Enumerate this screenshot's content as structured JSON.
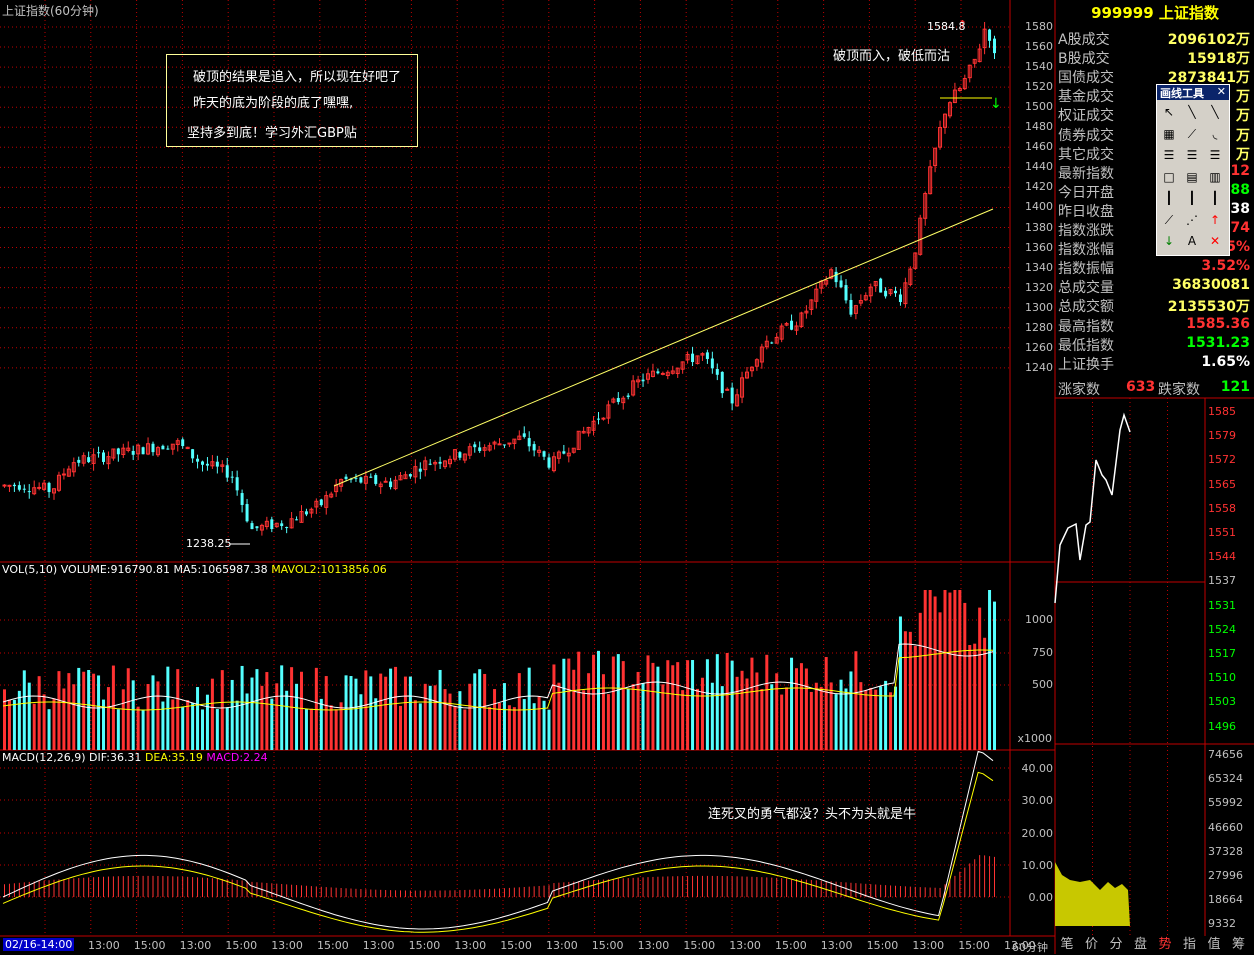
{
  "header": {
    "title": "上证指数(60分钟)"
  },
  "colors": {
    "up": "#ff3232",
    "down": "#54ffff",
    "grid": "#c00000",
    "ma5": "#ffffff",
    "ma10": "#ffff00"
  },
  "price_axis": {
    "ticks": [
      "1580",
      "1560",
      "1540",
      "1520",
      "1500",
      "1480",
      "1460",
      "1440",
      "1420",
      "1400",
      "1380",
      "1360",
      "1340",
      "1320",
      "1300",
      "1280",
      "1260",
      "1240"
    ]
  },
  "volume_axis": {
    "ticks": [
      "1000",
      "750",
      "500"
    ],
    "unit": "x1000"
  },
  "macd_axis": {
    "ticks": [
      "40.00",
      "30.00",
      "20.00",
      "10.00",
      "0.00"
    ]
  },
  "annotations": {
    "high_label": "1584.8",
    "low_label": "1238.25",
    "box_line1": "破顶的结果是追入，所以现在好吧了",
    "box_line2": "昨天的底为阶段的底了嘿嘿,",
    "box_line3": "坚持多到底！学习外汇GBP贴",
    "break_note": "破顶而入，破低而沽",
    "macd_note": "连死叉的勇气都没？头不为头就是牛"
  },
  "volume_legend": {
    "label": "VOL(5,10)",
    "volume": "VOLUME:916790.81",
    "ma5": "MA5:1065987.38",
    "mavol2": "MAVOL2:1013856.06"
  },
  "macd_legend": {
    "label": "MACD(12,26,9)",
    "dif": "DIF:36.31",
    "dea": "DEA:35.19",
    "macd": "MACD:2.24"
  },
  "time_axis": {
    "date": "02/16-14:00",
    "labels": [
      "13:00",
      "15:00",
      "13:00",
      "15:00",
      "13:00",
      "15:00",
      "13:00",
      "15:00",
      "13:00",
      "15:00",
      "13:00",
      "15:00",
      "13:00",
      "15:00",
      "13:00",
      "15:00",
      "13:00",
      "15:00",
      "13:00",
      "15:00",
      "13:00"
    ],
    "period": "60分钟"
  },
  "quote": {
    "code_name": "999999 上证指数",
    "rows": [
      {
        "k": "A股成交",
        "v": "2096102万",
        "c": "#ffff66"
      },
      {
        "k": "B股成交",
        "v": "15918万",
        "c": "#ffff66"
      },
      {
        "k": "国债成交",
        "v": "2873841万",
        "c": "#ffff66"
      },
      {
        "k": "基金成交",
        "v": "万",
        "c": "#ffff66"
      },
      {
        "k": "权证成交",
        "v": "万",
        "c": "#ffff66"
      },
      {
        "k": "债券成交",
        "v": "万",
        "c": "#ffff66"
      },
      {
        "k": "其它成交",
        "v": "万",
        "c": "#ffff66"
      },
      {
        "k": "最新指数",
        "v": ".12",
        "c": "#ff3232"
      },
      {
        "k": "今日开盘",
        "v": ".88",
        "c": "#00ff00"
      },
      {
        "k": "昨日收盘",
        "v": ".38",
        "c": "#ffffff"
      },
      {
        "k": "指数涨跌",
        "v": ".74",
        "c": "#ff3232"
      },
      {
        "k": "指数涨幅",
        "v": "5%",
        "c": "#ff3232"
      },
      {
        "k": "指数振幅",
        "v": "3.52%",
        "c": "#ff3232"
      },
      {
        "k": "总成交量",
        "v": "36830081",
        "c": "#ffff66"
      },
      {
        "k": "总成交额",
        "v": "2135530万",
        "c": "#ffff66"
      },
      {
        "k": "最高指数",
        "v": "1585.36",
        "c": "#ff3232"
      },
      {
        "k": "最低指数",
        "v": "1531.23",
        "c": "#00ff00"
      },
      {
        "k": "上证换手",
        "v": "1.65%",
        "c": "#ffffff"
      }
    ],
    "rise_label": "涨家数",
    "rise": "633",
    "fall_label": "跌家数",
    "fall": "121"
  },
  "mini_chart": {
    "price_ticks": [
      "1585",
      "1579",
      "1572",
      "1565",
      "1558",
      "1551",
      "1544",
      "1537",
      "1531",
      "1524",
      "1517",
      "1510",
      "1503",
      "1496"
    ],
    "vol_ticks": [
      "74656",
      "65324",
      "55992",
      "46660",
      "37328",
      "27996",
      "18664",
      "9332"
    ]
  },
  "toolbox": {
    "title": "画线工具"
  },
  "tabs": [
    "笔",
    "价",
    "分",
    "盘",
    "势",
    "指",
    "值",
    "筹"
  ]
}
